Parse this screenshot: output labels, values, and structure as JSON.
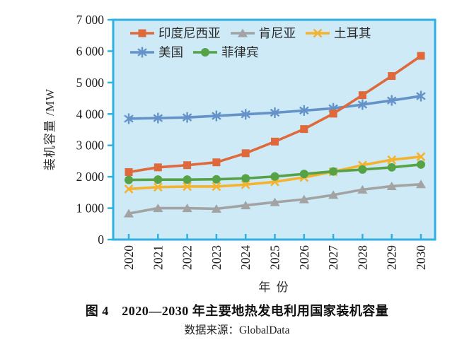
{
  "figure": {
    "caption": "图 4　2020—2030 年主要地热发电利用国家装机容量",
    "source": "数据来源：GlobalData"
  },
  "colors": {
    "plot_background": "#cdeaf6",
    "axis": "#2fb0e3",
    "tick_label": "#1d1d1d"
  },
  "chart_data": {
    "type": "line",
    "title": "图 4　2020—2030 年主要地热发电利用国家装机容量",
    "xlabel": "年  份",
    "ylabel": "装机容量 /MW",
    "x": [
      2020,
      2021,
      2022,
      2023,
      2024,
      2025,
      2026,
      2027,
      2028,
      2029,
      2030
    ],
    "ylim": [
      0,
      7000
    ],
    "ytick_step": 1000,
    "grid": false,
    "legend_position": "top-left-inside",
    "legend_rows": [
      [
        "印度尼西亚",
        "肯尼亚",
        "土耳其"
      ],
      [
        "美国",
        "菲律宾"
      ]
    ],
    "series": [
      {
        "name": "肯尼亚",
        "color": "#a3a3a3",
        "marker": "triangle",
        "values": [
          830,
          1000,
          1000,
          980,
          1090,
          1190,
          1280,
          1420,
          1590,
          1700,
          1760
        ]
      },
      {
        "name": "土耳其",
        "color": "#f3b32e",
        "marker": "x",
        "values": [
          1610,
          1670,
          1690,
          1690,
          1750,
          1840,
          1980,
          2160,
          2370,
          2540,
          2640
        ]
      },
      {
        "name": "菲律宾",
        "color": "#55a346",
        "marker": "circle",
        "values": [
          1900,
          1910,
          1910,
          1920,
          1950,
          2010,
          2090,
          2170,
          2230,
          2300,
          2390
        ]
      },
      {
        "name": "美国",
        "color": "#6593c9",
        "marker": "asterisk",
        "values": [
          3850,
          3870,
          3890,
          3940,
          3990,
          4040,
          4110,
          4180,
          4300,
          4430,
          4570
        ]
      },
      {
        "name": "印度尼西亚",
        "color": "#e0693b",
        "marker": "square",
        "values": [
          2150,
          2300,
          2370,
          2460,
          2750,
          3120,
          3520,
          4010,
          4600,
          5210,
          5850
        ]
      }
    ]
  }
}
